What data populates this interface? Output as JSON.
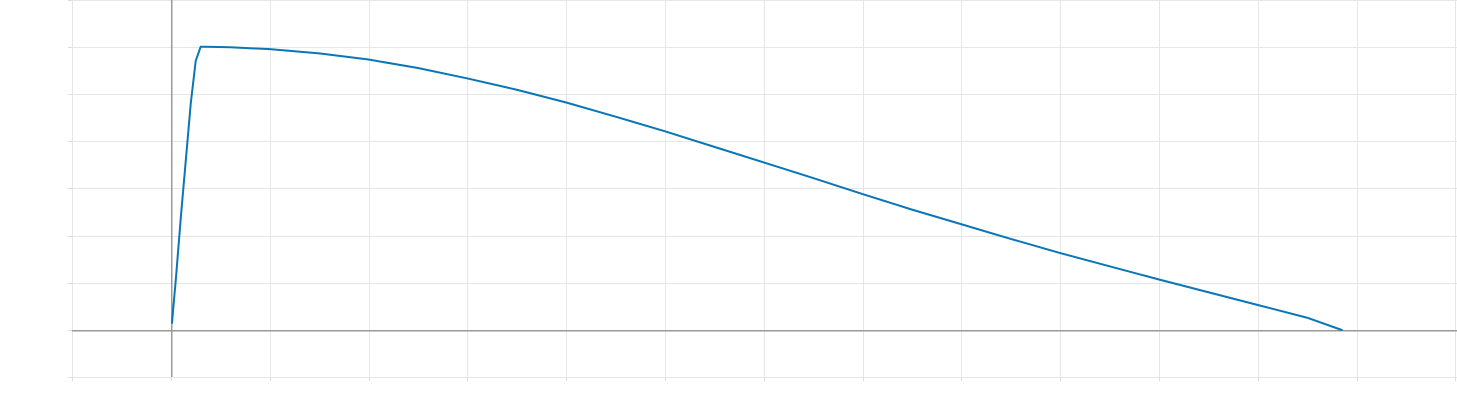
{
  "chart_data": {
    "type": "line",
    "title": "",
    "xlabel": "",
    "ylabel": "",
    "xlim": [
      -1,
      13
    ],
    "ylim": [
      -1,
      7
    ],
    "x_grid_step": 1,
    "y_grid_step": 1,
    "grid": true,
    "axes_through_origin": true,
    "tick_labels_visible": false,
    "colors": {
      "line": "#0a76b7",
      "grid": "#e6e6e6",
      "axis": "#9a9a9a",
      "background": "#ffffff"
    },
    "series": [
      {
        "x": [
          0.01,
          0.05,
          0.1,
          0.15,
          0.2,
          0.25,
          0.3,
          0.35,
          0.6,
          1.0,
          1.5,
          2.0,
          2.5,
          3.0,
          3.5,
          4.0,
          4.5,
          5.0,
          5.5,
          6.0,
          6.5,
          7.0,
          7.5,
          8.0,
          8.5,
          9.0,
          9.5,
          10.0,
          10.5,
          11.0,
          11.5,
          11.85
        ],
        "y": [
          0.15,
          1.1,
          2.4,
          3.6,
          4.8,
          5.7,
          6.0,
          6.0,
          5.99,
          5.95,
          5.86,
          5.73,
          5.55,
          5.33,
          5.09,
          4.82,
          4.52,
          4.21,
          3.88,
          3.55,
          3.22,
          2.88,
          2.55,
          2.24,
          1.93,
          1.63,
          1.35,
          1.07,
          0.8,
          0.53,
          0.26,
          0.0
        ]
      }
    ]
  }
}
